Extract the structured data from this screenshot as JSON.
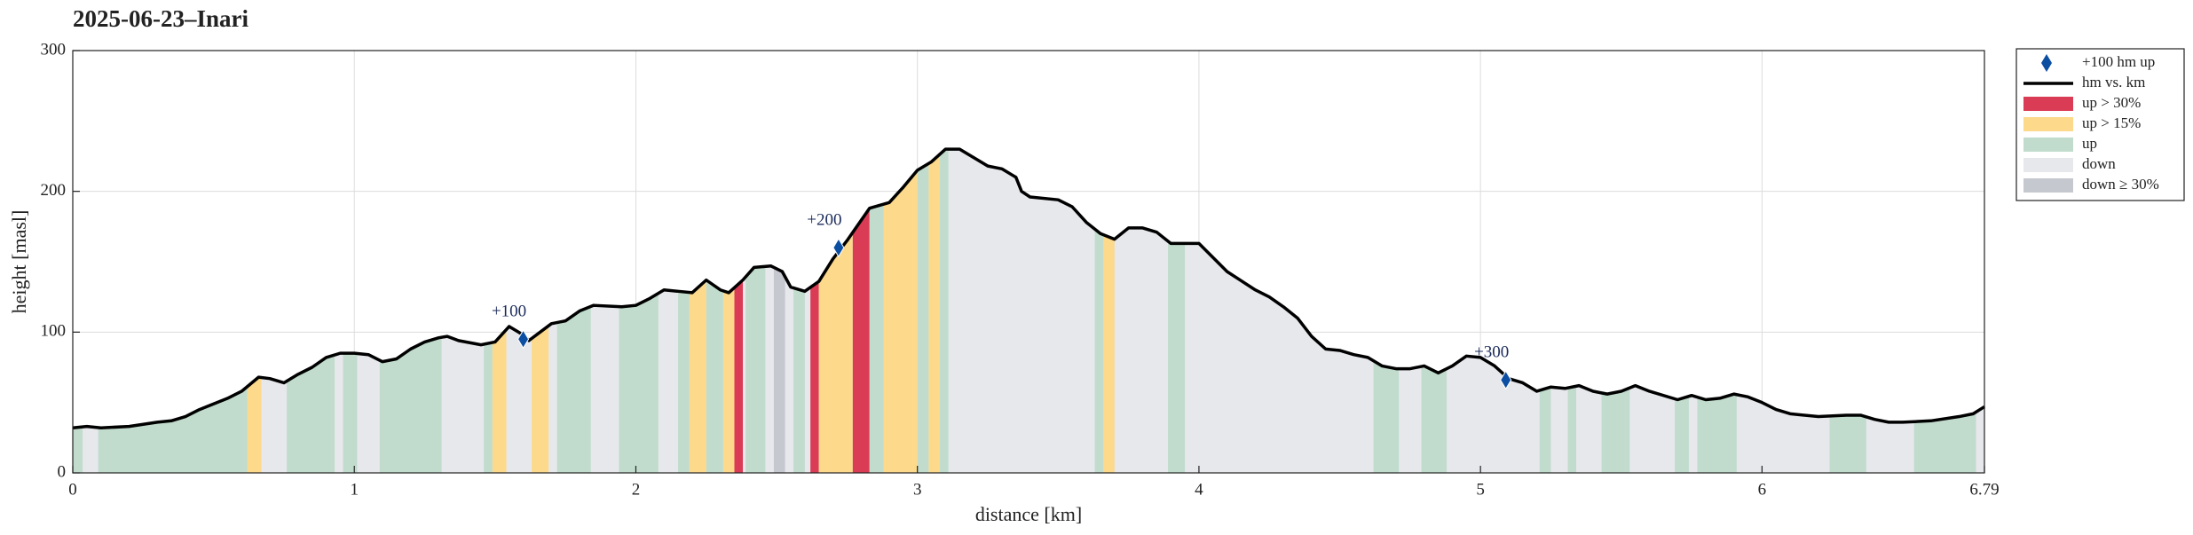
{
  "chart_data": {
    "type": "profile",
    "title": "2025-06-23–Inari",
    "xlabel": "distance [km]",
    "ylabel": "height [masl]",
    "xlim": [
      0,
      6.79
    ],
    "ylim": [
      0,
      300
    ],
    "xticks": [
      0,
      1,
      2,
      3,
      4,
      5,
      6,
      6.79
    ],
    "yticks": [
      0,
      100,
      200,
      300
    ],
    "grid": true,
    "legend": "outside upper right",
    "markers": {
      "name": "+100 hm up",
      "color": "#0b4ea2",
      "x": [
        1.6,
        2.72,
        5.09
      ],
      "values": [
        95,
        160,
        66
      ],
      "labels": [
        "+100",
        "+200",
        "+300"
      ]
    },
    "line": {
      "name": "hm vs. km",
      "color": "#000000",
      "x": [
        0,
        0.05,
        0.1,
        0.2,
        0.3,
        0.35,
        0.4,
        0.45,
        0.5,
        0.55,
        0.6,
        0.66,
        0.7,
        0.75,
        0.8,
        0.85,
        0.9,
        0.95,
        1.0,
        1.05,
        1.1,
        1.15,
        1.2,
        1.25,
        1.3,
        1.33,
        1.37,
        1.45,
        1.5,
        1.55,
        1.6,
        1.62,
        1.7,
        1.75,
        1.8,
        1.85,
        1.95,
        2.0,
        2.05,
        2.1,
        2.15,
        2.2,
        2.25,
        2.3,
        2.33,
        2.38,
        2.42,
        2.48,
        2.52,
        2.55,
        2.6,
        2.65,
        2.7,
        2.75,
        2.83,
        2.9,
        2.95,
        3.0,
        3.05,
        3.1,
        3.15,
        3.2,
        3.25,
        3.3,
        3.35,
        3.37,
        3.4,
        3.5,
        3.55,
        3.6,
        3.65,
        3.7,
        3.75,
        3.8,
        3.85,
        3.9,
        3.95,
        4.0,
        4.05,
        4.1,
        4.2,
        4.25,
        4.3,
        4.35,
        4.4,
        4.45,
        4.5,
        4.55,
        4.6,
        4.65,
        4.7,
        4.75,
        4.8,
        4.85,
        4.9,
        4.95,
        5.0,
        5.05,
        5.1,
        5.15,
        5.2,
        5.25,
        5.3,
        5.35,
        5.4,
        5.45,
        5.5,
        5.55,
        5.6,
        5.7,
        5.75,
        5.8,
        5.85,
        5.9,
        5.95,
        6.0,
        6.05,
        6.1,
        6.2,
        6.3,
        6.35,
        6.4,
        6.45,
        6.5,
        6.6,
        6.7,
        6.75,
        6.79
      ],
      "values": [
        32,
        33,
        32,
        33,
        36,
        37,
        40,
        45,
        49,
        53,
        58,
        68,
        67,
        64,
        70,
        75,
        82,
        85,
        85,
        84,
        79,
        81,
        88,
        93,
        96,
        97,
        94,
        91,
        93,
        104,
        98,
        94,
        106,
        108,
        115,
        119,
        118,
        119,
        124,
        130,
        129,
        128,
        137,
        130,
        128,
        137,
        146,
        147,
        143,
        132,
        129,
        136,
        152,
        165,
        188,
        192,
        203,
        215,
        221,
        230,
        230,
        224,
        218,
        216,
        210,
        200,
        196,
        194,
        189,
        178,
        170,
        166,
        174,
        174,
        171,
        163,
        163,
        163,
        153,
        143,
        130,
        125,
        118,
        110,
        97,
        88,
        87,
        84,
        82,
        76,
        74,
        74,
        76,
        71,
        76,
        83,
        82,
        76,
        67,
        64,
        58,
        61,
        60,
        62,
        58,
        56,
        58,
        62,
        58,
        52,
        55,
        52,
        53,
        56,
        54,
        50,
        45,
        42,
        40,
        41,
        41,
        38,
        36,
        36,
        37,
        40,
        42,
        47
      ]
    },
    "bands": [
      {
        "name": "up > 30%",
        "color": "#db3c55",
        "x0": [
          2.35,
          2.62,
          2.77
        ],
        "x1": [
          2.38,
          2.65,
          2.83
        ]
      },
      {
        "name": "up > 15%",
        "color": "#fcd98b",
        "x0": [
          0.62,
          1.49,
          1.63,
          2.19,
          2.31,
          2.65,
          2.88,
          3.04,
          3.66
        ],
        "x1": [
          0.67,
          1.54,
          1.69,
          2.25,
          2.35,
          2.77,
          3.0,
          3.08,
          3.7
        ]
      },
      {
        "name": "up",
        "color": "#c1dccd",
        "x0": [
          0,
          0.09,
          0.76,
          0.96,
          1.09,
          1.46,
          1.72,
          1.94,
          2.15,
          2.25,
          2.39,
          2.56,
          2.83,
          3.0,
          3.08,
          3.63,
          3.89,
          4.62,
          4.79,
          5.21,
          5.31,
          5.43,
          5.69,
          5.77,
          6.24,
          6.54
        ],
        "x1": [
          0.035,
          0.62,
          0.93,
          1.01,
          1.31,
          1.49,
          1.84,
          2.08,
          2.19,
          2.31,
          2.46,
          2.6,
          2.88,
          3.04,
          3.11,
          3.66,
          3.95,
          4.71,
          4.88,
          5.25,
          5.34,
          5.53,
          5.74,
          5.91,
          6.37,
          6.76
        ]
      },
      {
        "name": "down",
        "color": "#e7e8ec",
        "x0": [],
        "x1": []
      },
      {
        "name": "down ≥ 30%",
        "color": "#c6c8d0",
        "x0": [
          2.49
        ],
        "x1": [
          2.53
        ]
      }
    ]
  }
}
